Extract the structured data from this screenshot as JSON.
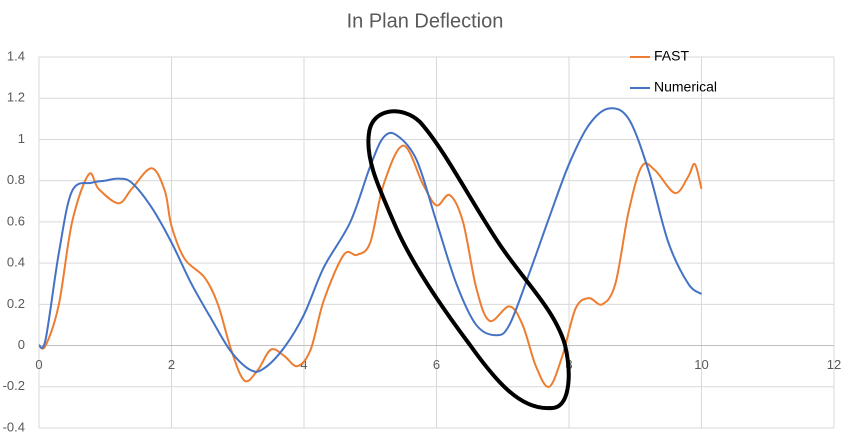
{
  "chart_data": {
    "type": "line",
    "title": "In Plan Deflection",
    "xlim": [
      0,
      12
    ],
    "xticks": [
      0,
      2,
      4,
      6,
      8,
      10,
      12
    ],
    "ylim": [
      -0.4,
      1.4
    ],
    "yticks": [
      -0.4,
      -0.2,
      0,
      0.2,
      0.4,
      0.6,
      0.8,
      1,
      1.2,
      1.4
    ],
    "grid": true,
    "legend": "top-right",
    "series": [
      {
        "name": "FAST",
        "color": "#ed7d31",
        "x": [
          0,
          0.1,
          0.3,
          0.5,
          0.75,
          0.9,
          1.2,
          1.4,
          1.7,
          1.9,
          2.0,
          2.2,
          2.5,
          2.7,
          2.9,
          3.1,
          3.3,
          3.5,
          3.7,
          3.9,
          4.1,
          4.3,
          4.6,
          4.8,
          5.0,
          5.2,
          5.5,
          5.8,
          6.0,
          6.2,
          6.4,
          6.6,
          6.8,
          7.1,
          7.3,
          7.5,
          7.7,
          7.9,
          8.1,
          8.3,
          8.5,
          8.7,
          8.9,
          9.1,
          9.3,
          9.6,
          9.8,
          9.9,
          10
        ],
        "values": [
          0,
          0.0,
          0.2,
          0.6,
          0.83,
          0.76,
          0.69,
          0.76,
          0.86,
          0.75,
          0.58,
          0.42,
          0.33,
          0.2,
          -0.02,
          -0.17,
          -0.12,
          -0.02,
          -0.05,
          -0.1,
          -0.02,
          0.22,
          0.44,
          0.44,
          0.5,
          0.78,
          0.97,
          0.78,
          0.68,
          0.73,
          0.6,
          0.28,
          0.12,
          0.19,
          0.1,
          -0.1,
          -0.2,
          -0.05,
          0.18,
          0.23,
          0.2,
          0.3,
          0.65,
          0.87,
          0.85,
          0.74,
          0.82,
          0.88,
          0.76
        ]
      },
      {
        "name": "Numerical",
        "color": "#4472c4",
        "x": [
          0,
          0.1,
          0.3,
          0.5,
          0.8,
          1.0,
          1.2,
          1.4,
          1.7,
          2.0,
          2.3,
          2.6,
          2.9,
          3.2,
          3.4,
          3.7,
          4.0,
          4.3,
          4.7,
          5.0,
          5.2,
          5.4,
          5.7,
          6.0,
          6.3,
          6.6,
          6.9,
          7.1,
          7.4,
          7.7,
          8.0,
          8.3,
          8.6,
          8.9,
          9.2,
          9.5,
          9.8,
          10
        ],
        "values": [
          0,
          0.03,
          0.45,
          0.75,
          0.79,
          0.8,
          0.81,
          0.79,
          0.67,
          0.5,
          0.3,
          0.13,
          -0.03,
          -0.12,
          -0.11,
          -0.01,
          0.15,
          0.38,
          0.6,
          0.87,
          1.01,
          1.02,
          0.9,
          0.6,
          0.3,
          0.1,
          0.05,
          0.1,
          0.35,
          0.62,
          0.88,
          1.07,
          1.15,
          1.1,
          0.85,
          0.5,
          0.3,
          0.25
        ]
      }
    ]
  }
}
